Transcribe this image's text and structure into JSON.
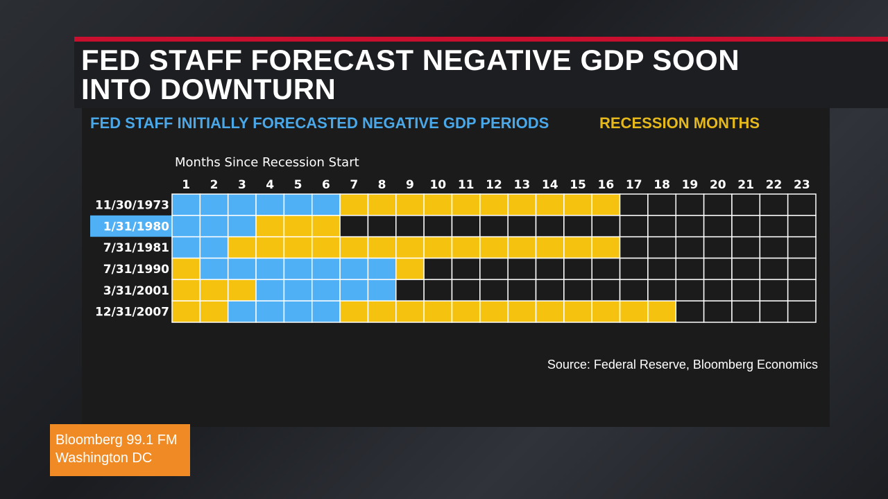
{
  "headline": {
    "line1": "FED STAFF FORECAST NEGATIVE GDP SOON",
    "line2": "INTO DOWNTURN"
  },
  "badge": {
    "line1": "Bloomberg 99.1 FM",
    "line2": "Washington DC"
  },
  "source": "Source: Federal Reserve, Bloomberg Economics",
  "colors": {
    "forecast": "#4fb0f5",
    "recession": "#f5c20f",
    "none": "#1b1b1b",
    "accent_red": "#c8102e",
    "badge": "#f08a24"
  },
  "chart_data": {
    "type": "heatmap",
    "title": "",
    "legend": [
      {
        "key": "F",
        "label": "FED STAFF INITIALLY FORECASTED NEGATIVE GDP PERIODS",
        "color": "#4fb0f5"
      },
      {
        "key": "R",
        "label": "RECESSION MONTHS",
        "color": "#f5c20f"
      }
    ],
    "legend_position": "top",
    "xlabel": "Months Since Recession Start",
    "months": [
      1,
      2,
      3,
      4,
      5,
      6,
      7,
      8,
      9,
      10,
      11,
      12,
      13,
      14,
      15,
      16,
      17,
      18,
      19,
      20,
      21,
      22,
      23
    ],
    "highlighted_row": "1/31/1980",
    "rows": [
      {
        "label": "11/30/1973",
        "forecast_months": [
          1,
          2,
          3,
          4,
          5,
          6
        ],
        "recession_months": [
          7,
          8,
          9,
          10,
          11,
          12,
          13,
          14,
          15,
          16
        ]
      },
      {
        "label": "1/31/1980",
        "forecast_months": [
          1,
          2,
          3
        ],
        "recession_months": [
          4,
          5,
          6
        ]
      },
      {
        "label": "7/31/1981",
        "forecast_months": [
          1,
          2
        ],
        "recession_months": [
          3,
          4,
          5,
          6,
          7,
          8,
          9,
          10,
          11,
          12,
          13,
          14,
          15,
          16
        ]
      },
      {
        "label": "7/31/1990",
        "forecast_months": [
          2,
          3,
          4,
          5,
          6,
          7,
          8
        ],
        "recession_months": [
          1,
          9
        ]
      },
      {
        "label": "3/31/2001",
        "forecast_months": [
          4,
          5,
          6,
          7,
          8
        ],
        "recession_months": [
          1,
          2,
          3
        ]
      },
      {
        "label": "12/31/2007",
        "forecast_months": [
          3,
          4,
          5,
          6
        ],
        "recession_months": [
          1,
          2,
          7,
          8,
          9,
          10,
          11,
          12,
          13,
          14,
          15,
          16,
          17,
          18
        ]
      }
    ]
  }
}
